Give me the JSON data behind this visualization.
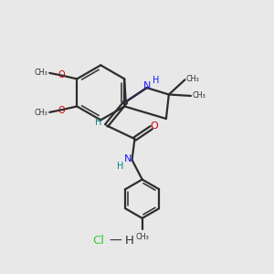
{
  "bg_color": "#e8e8e8",
  "bond_color": "#2d2d2d",
  "n_color": "#1a1aff",
  "o_color": "#cc0000",
  "nh_color": "#008080",
  "cl_color": "#33cc33",
  "figsize": [
    3.0,
    3.0
  ],
  "dpi": 100,
  "xlim": [
    0,
    10
  ],
  "ylim": [
    0,
    10
  ],
  "lw": 1.6,
  "lw_inner": 1.1
}
